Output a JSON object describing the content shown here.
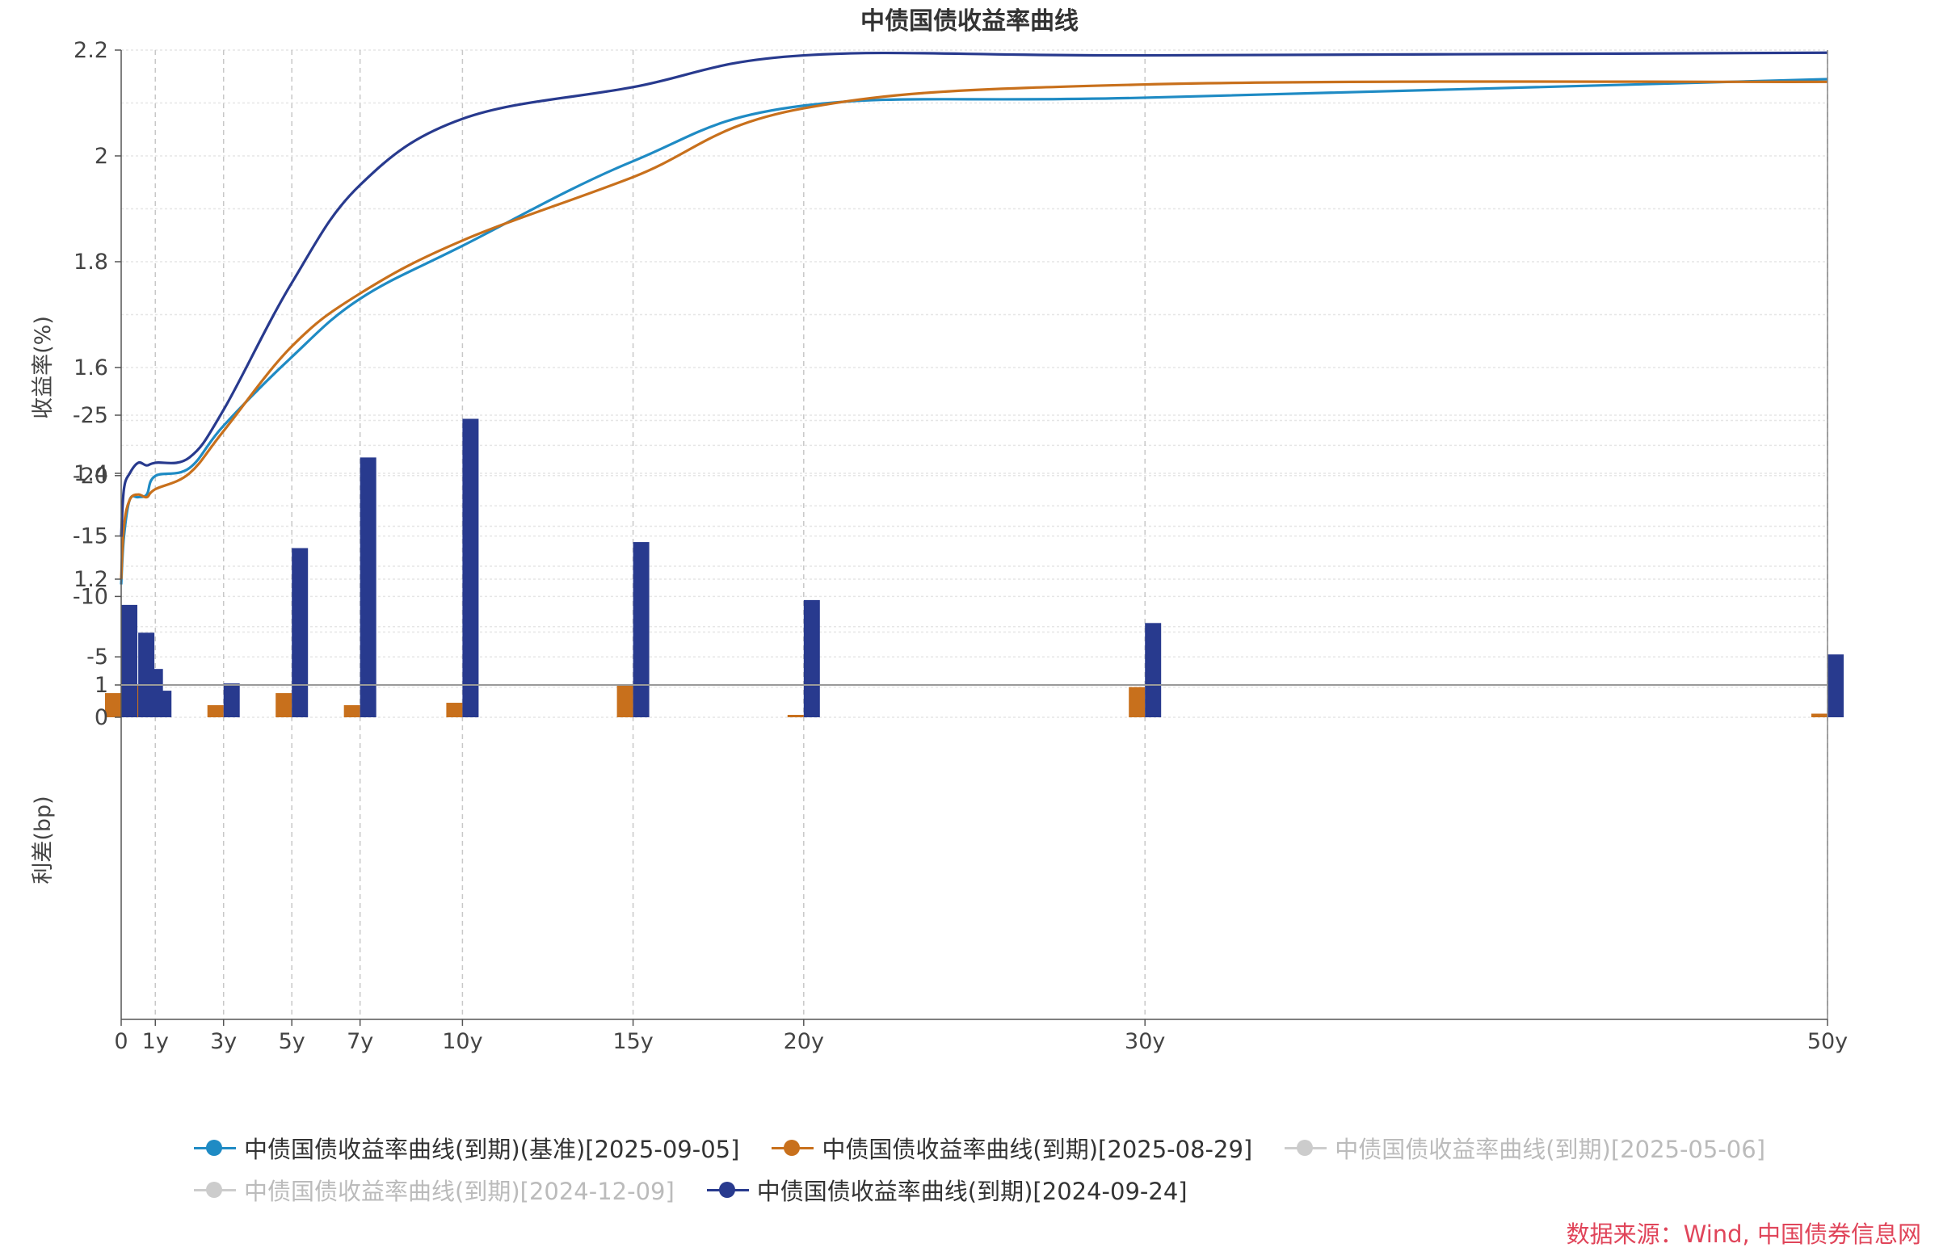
{
  "chart_data": {
    "type": "line",
    "title": "中债国债收益率曲线",
    "x_ticks": [
      {
        "x": 0,
        "label": "0"
      },
      {
        "x": 1,
        "label": "1y"
      },
      {
        "x": 3,
        "label": "3y"
      },
      {
        "x": 5,
        "label": "5y"
      },
      {
        "x": 7,
        "label": "7y"
      },
      {
        "x": 10,
        "label": "10y"
      },
      {
        "x": 15,
        "label": "15y"
      },
      {
        "x": 20,
        "label": "20y"
      },
      {
        "x": 30,
        "label": "30y"
      },
      {
        "x": 50,
        "label": "50y"
      }
    ],
    "xlim": [
      0,
      50
    ],
    "top_panel": {
      "ylabel": "收益率(%)",
      "ylim": [
        1.0,
        2.2
      ],
      "y_ticks": [
        "1",
        "1.2",
        "1.4",
        "1.6",
        "1.8",
        "2",
        "2.2"
      ],
      "grid": true
    },
    "bottom_panel": {
      "ylabel": "利差(bp)",
      "ylim": [
        -25,
        0
      ],
      "y_ticks": [
        "0",
        "-5",
        "-10",
        "-15",
        "-20",
        "-25"
      ],
      "grid": true
    },
    "series": [
      {
        "name": "中债国债收益率曲线(到期)(基准)[2025-09-05]",
        "color": "#1f8bc4",
        "visible": true,
        "x": [
          0,
          0.08,
          0.25,
          0.5,
          0.75,
          1,
          2,
          3,
          5,
          7,
          10,
          15,
          20,
          30,
          50
        ],
        "y": [
          1.19,
          1.28,
          1.35,
          1.355,
          1.36,
          1.395,
          1.41,
          1.49,
          1.62,
          1.73,
          1.83,
          1.99,
          2.095,
          2.11,
          2.145
        ]
      },
      {
        "name": "中债国债收益率曲线(到期)[2025-08-29]",
        "color": "#c8701c",
        "visible": true,
        "x": [
          0,
          0.08,
          0.25,
          0.5,
          0.75,
          1,
          2,
          3,
          5,
          7,
          10,
          15,
          20,
          30,
          50
        ],
        "y": [
          1.2,
          1.3,
          1.35,
          1.36,
          1.355,
          1.37,
          1.4,
          1.48,
          1.64,
          1.74,
          1.84,
          1.96,
          2.09,
          2.135,
          2.14
        ]
      },
      {
        "name": "中债国债收益率曲线(到期)[2025-05-06]",
        "color": "#cccccc",
        "visible": false
      },
      {
        "name": "中债国债收益率曲线(到期)[2024-12-09]",
        "color": "#cccccc",
        "visible": false
      },
      {
        "name": "中债国债收益率曲线(到期)[2024-09-24]",
        "color": "#283a8e",
        "visible": true,
        "x": [
          0,
          0.08,
          0.25,
          0.5,
          0.75,
          1,
          2,
          3,
          5,
          7,
          10,
          15,
          20,
          30,
          50
        ],
        "y": [
          1.28,
          1.37,
          1.4,
          1.42,
          1.415,
          1.42,
          1.43,
          1.52,
          1.76,
          1.945,
          2.07,
          2.13,
          2.19,
          2.19,
          2.195
        ]
      }
    ],
    "spread_bars": [
      {
        "series": "中债国债收益率曲线(到期)[2025-08-29]",
        "color": "#c8701c",
        "x": [
          0,
          0.5,
          0.75,
          3,
          5,
          7,
          10,
          15,
          20,
          30,
          50
        ],
        "values": [
          -2,
          1.8,
          3,
          1,
          -2,
          -1,
          -1.2,
          3,
          0.2,
          -2.5,
          0.3
        ]
      },
      {
        "series": "中债国债收益率曲线(到期)[2024-09-24]",
        "color": "#283a8e",
        "x": [
          0,
          0.5,
          0.75,
          1,
          3,
          5,
          7,
          10,
          15,
          20,
          30,
          50
        ],
        "values": [
          -9.3,
          -7,
          -4,
          -2.2,
          -2.8,
          -14,
          -21.5,
          -24.7,
          -14.5,
          -9.7,
          -7.8,
          -5.2
        ]
      }
    ]
  },
  "legend": {
    "rows": [
      [
        {
          "label": "中债国债收益率曲线(到期)(基准)[2025-09-05]",
          "color": "#1f8bc4",
          "active": true
        },
        {
          "label": "中债国债收益率曲线(到期)[2025-08-29]",
          "color": "#c8701c",
          "active": true
        },
        {
          "label": "中债国债收益率曲线(到期)[2025-05-06]",
          "color": "#cccccc",
          "active": false
        }
      ],
      [
        {
          "label": "中债国债收益率曲线(到期)[2024-12-09]",
          "color": "#cccccc",
          "active": false
        },
        {
          "label": "中债国债收益率曲线(到期)[2024-09-24]",
          "color": "#283a8e",
          "active": true
        }
      ]
    ]
  },
  "source": "数据来源：Wind, 中国债券信息网"
}
